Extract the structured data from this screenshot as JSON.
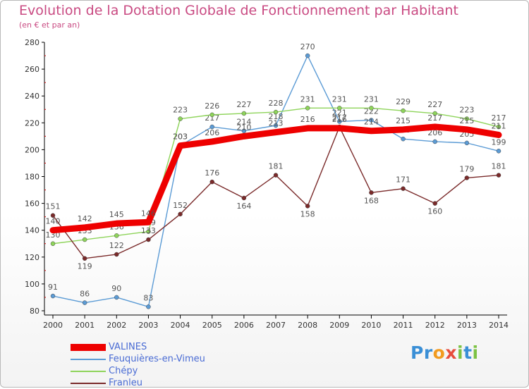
{
  "header": {
    "title": "Evolution de la Dotation Globale de Fonctionnement par Habitant",
    "subtitle": "(en € et par an)"
  },
  "logo": {
    "text": "Proxiti",
    "letters": [
      "P",
      "r",
      "o",
      "x",
      "i",
      "t",
      "i"
    ]
  },
  "chart_data": {
    "type": "line",
    "title": "Evolution de la Dotation Globale de Fonctionnement par Habitant",
    "subtitle": "(en € et par an)",
    "x": [
      2000,
      2001,
      2002,
      2003,
      2004,
      2005,
      2006,
      2007,
      2008,
      2009,
      2010,
      2011,
      2012,
      2013,
      2014
    ],
    "ylim": [
      80,
      280
    ],
    "yticks": [
      80,
      100,
      120,
      140,
      160,
      180,
      200,
      220,
      240,
      260,
      280
    ],
    "grid": false,
    "legend_position": "bottom-left",
    "series": [
      {
        "name": "Feuquières-en-Vimeu",
        "color": "#5b9bd5",
        "values": [
          91,
          86,
          90,
          83,
          203,
          217,
          214,
          218,
          270,
          221,
          222,
          208,
          206,
          205,
          199
        ]
      },
      {
        "name": "Chépy",
        "color": "#8ed45a",
        "values": [
          130,
          133,
          136,
          139,
          223,
          226,
          227,
          228,
          231,
          231,
          231,
          229,
          227,
          223,
          217
        ]
      },
      {
        "name": "Franleu",
        "color": "#7a2a2a",
        "values": [
          151,
          119,
          122,
          133,
          152,
          176,
          164,
          181,
          158,
          217,
          168,
          171,
          160,
          179,
          181
        ]
      },
      {
        "name": "VALINES",
        "color": "#ee0000",
        "values": [
          140,
          142,
          145,
          146,
          203,
          206,
          210,
          213,
          216,
          216,
          214,
          215,
          217,
          215,
          211
        ]
      }
    ]
  },
  "legend": [
    {
      "name": "VALINES",
      "color": "#ee0000"
    },
    {
      "name": "Feuquières-en-Vimeu",
      "color": "#5b9bd5"
    },
    {
      "name": "Chépy",
      "color": "#8ed45a"
    },
    {
      "name": "Franleu",
      "color": "#7a2a2a"
    }
  ]
}
